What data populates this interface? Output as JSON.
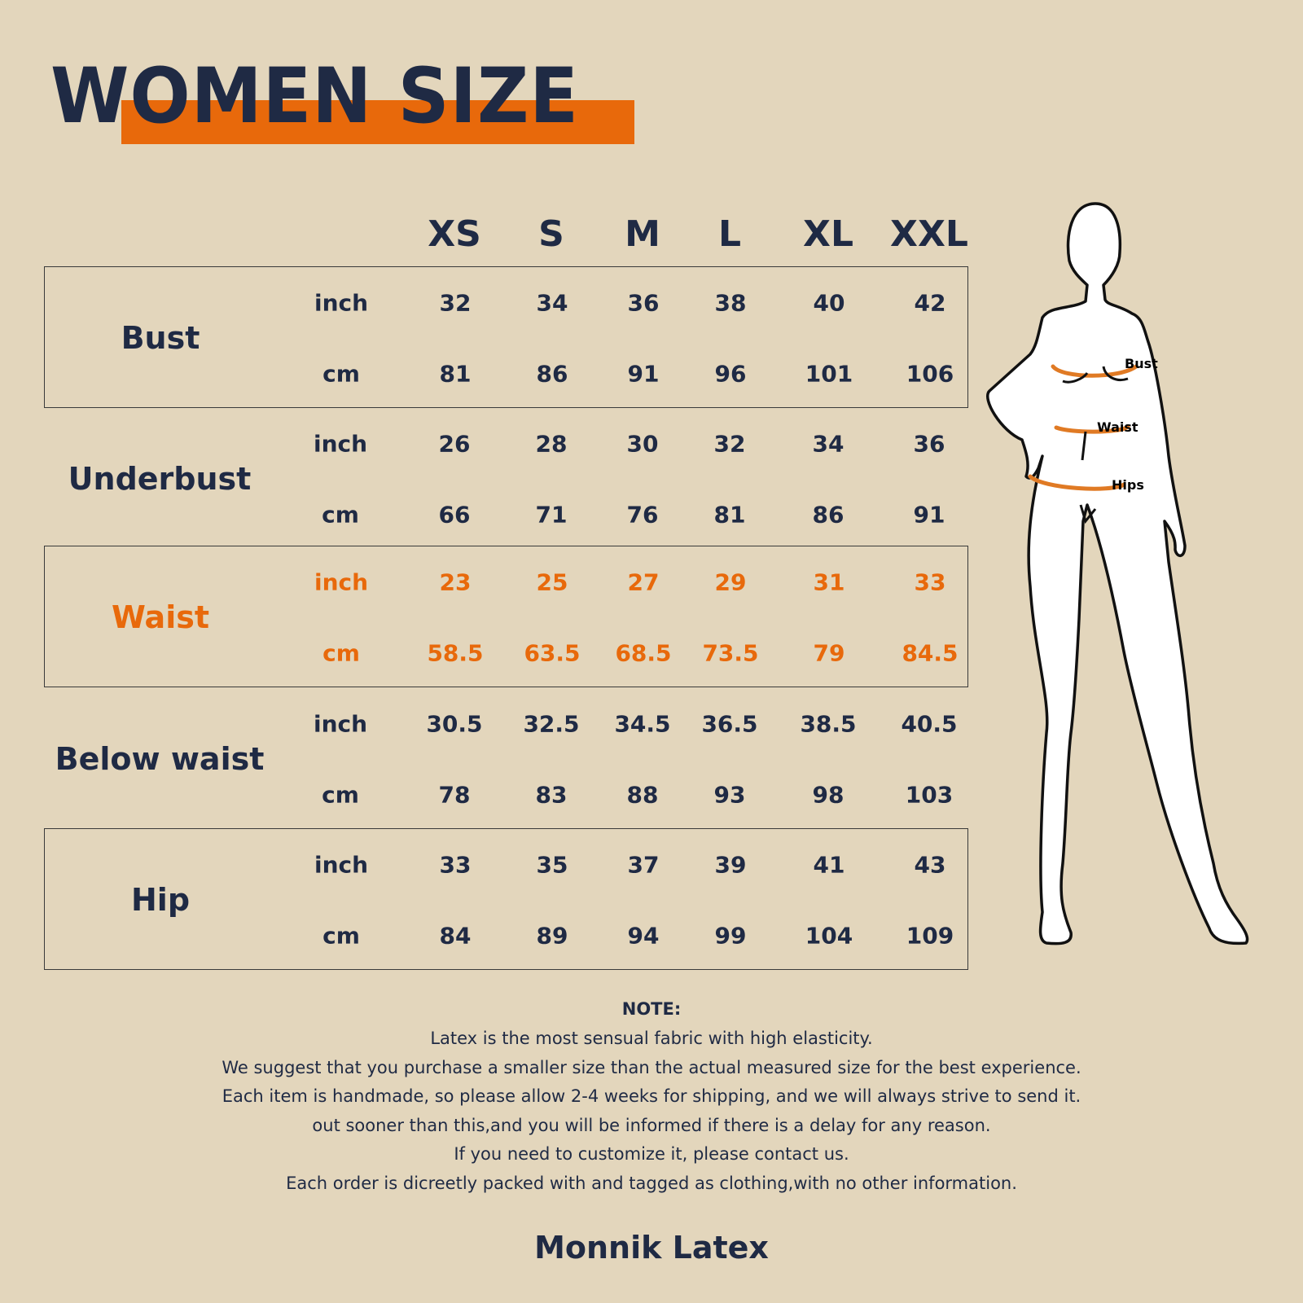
{
  "title": "WOMEN SIZE",
  "sizes": [
    "XS",
    "S",
    "M",
    "L",
    "XL",
    "XXL"
  ],
  "rows": [
    {
      "label": "Bust",
      "highlight": false,
      "boxed": true,
      "inch": [
        "32",
        "34",
        "36",
        "38",
        "40",
        "42"
      ],
      "cm": [
        "81",
        "86",
        "91",
        "96",
        "101",
        "106"
      ]
    },
    {
      "label": "Underbust",
      "highlight": false,
      "boxed": false,
      "inch": [
        "26",
        "28",
        "30",
        "32",
        "34",
        "36"
      ],
      "cm": [
        "66",
        "71",
        "76",
        "81",
        "86",
        "91"
      ]
    },
    {
      "label": "Waist",
      "highlight": true,
      "boxed": true,
      "inch": [
        "23",
        "25",
        "27",
        "29",
        "31",
        "33"
      ],
      "cm": [
        "58.5",
        "63.5",
        "68.5",
        "73.5",
        "79",
        "84.5"
      ]
    },
    {
      "label": "Below waist",
      "highlight": false,
      "boxed": false,
      "inch": [
        "30.5",
        "32.5",
        "34.5",
        "36.5",
        "38.5",
        "40.5"
      ],
      "cm": [
        "78",
        "83",
        "88",
        "93",
        "98",
        "103"
      ]
    },
    {
      "label": "Hip",
      "highlight": false,
      "boxed": true,
      "inch": [
        "33",
        "35",
        "37",
        "39",
        "41",
        "43"
      ],
      "cm": [
        "84",
        "89",
        "94",
        "99",
        "104",
        "109"
      ]
    }
  ],
  "units": {
    "inch": "inch",
    "cm": "cm"
  },
  "figure": {
    "labels": {
      "bust": "Bust",
      "waist": "Waist",
      "hips": "Hips"
    }
  },
  "note": {
    "title": "NOTE:",
    "lines": [
      "Latex is the most sensual fabric with high elasticity.",
      "We suggest that you purchase a smaller size than the actual measured size for the best experience.",
      "Each item is handmade, so please allow 2-4 weeks for shipping, and we will always strive to send it.",
      "out sooner than this,and you will be informed if there is a delay for any reason.",
      "If you need to customize it, please contact us.",
      "Each order is dicreetly packed with and tagged as clothing,with no other information."
    ]
  },
  "brand": "Monnik Latex",
  "colors": {
    "background": "#e3d6bc",
    "text": "#1f2a44",
    "accent": "#e8690b"
  }
}
